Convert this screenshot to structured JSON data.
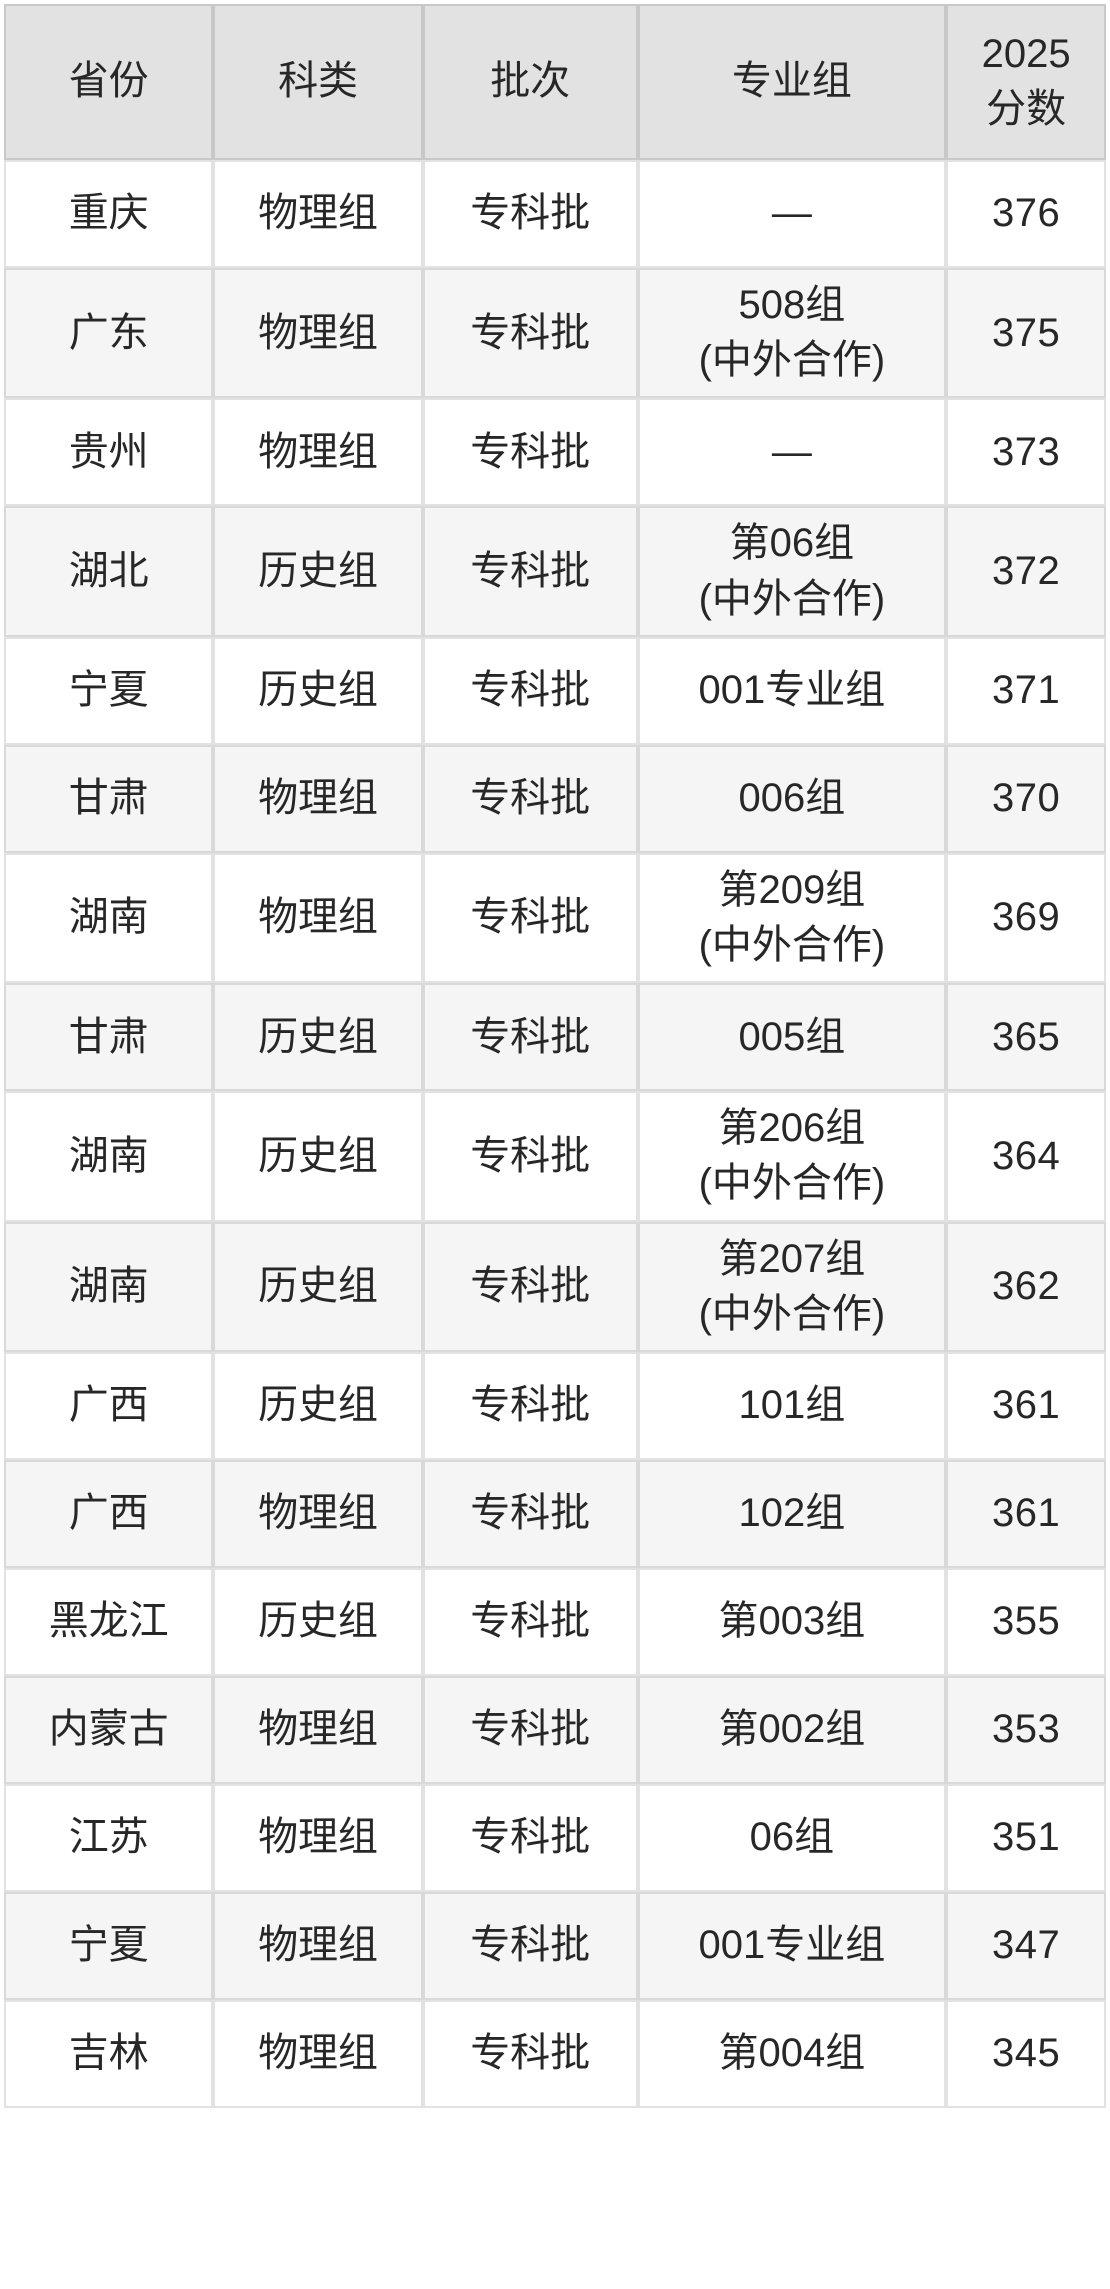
{
  "table": {
    "colors": {
      "header_bg": "#e2e2e2",
      "row_bg": "#ffffff",
      "row_alt_bg": "#f5f5f5",
      "text": "#272727",
      "grid_line": "rgba(0,0,0,0.115)"
    },
    "columns": [
      {
        "key": "province",
        "label": "省份"
      },
      {
        "key": "category",
        "label": "科类"
      },
      {
        "key": "batch",
        "label": "批次"
      },
      {
        "key": "group",
        "label": "专业组"
      },
      {
        "key": "score",
        "label": "2025\n分数"
      }
    ],
    "rows": [
      {
        "province": "重庆",
        "category": "物理组",
        "batch": "专科批",
        "group": "—",
        "score": "376"
      },
      {
        "province": "广东",
        "category": "物理组",
        "batch": "专科批",
        "group": "508组\n(中外合作)",
        "score": "375"
      },
      {
        "province": "贵州",
        "category": "物理组",
        "batch": "专科批",
        "group": "—",
        "score": "373"
      },
      {
        "province": "湖北",
        "category": "历史组",
        "batch": "专科批",
        "group": "第06组\n(中外合作)",
        "score": "372"
      },
      {
        "province": "宁夏",
        "category": "历史组",
        "batch": "专科批",
        "group": "001专业组",
        "score": "371"
      },
      {
        "province": "甘肃",
        "category": "物理组",
        "batch": "专科批",
        "group": "006组",
        "score": "370"
      },
      {
        "province": "湖南",
        "category": "物理组",
        "batch": "专科批",
        "group": "第209组\n(中外合作)",
        "score": "369"
      },
      {
        "province": "甘肃",
        "category": "历史组",
        "batch": "专科批",
        "group": "005组",
        "score": "365"
      },
      {
        "province": "湖南",
        "category": "历史组",
        "batch": "专科批",
        "group": "第206组\n(中外合作)",
        "score": "364"
      },
      {
        "province": "湖南",
        "category": "历史组",
        "batch": "专科批",
        "group": "第207组\n(中外合作)",
        "score": "362"
      },
      {
        "province": "广西",
        "category": "历史组",
        "batch": "专科批",
        "group": "101组",
        "score": "361"
      },
      {
        "province": "广西",
        "category": "物理组",
        "batch": "专科批",
        "group": "102组",
        "score": "361"
      },
      {
        "province": "黑龙江",
        "category": "历史组",
        "batch": "专科批",
        "group": "第003组",
        "score": "355"
      },
      {
        "province": "内蒙古",
        "category": "物理组",
        "batch": "专科批",
        "group": "第002组",
        "score": "353"
      },
      {
        "province": "江苏",
        "category": "物理组",
        "batch": "专科批",
        "group": "06组",
        "score": "351"
      },
      {
        "province": "宁夏",
        "category": "物理组",
        "batch": "专科批",
        "group": "001专业组",
        "score": "347"
      },
      {
        "province": "吉林",
        "category": "物理组",
        "batch": "专科批",
        "group": "第004组",
        "score": "345"
      }
    ]
  }
}
